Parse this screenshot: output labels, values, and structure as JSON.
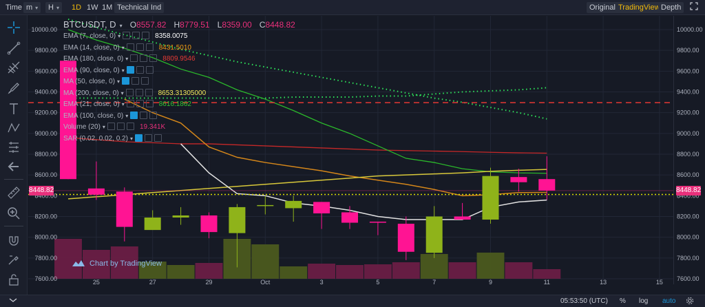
{
  "toolbar": {
    "time_label": "Time",
    "minute_label": "m",
    "hour_label": "H",
    "intervals": [
      "1D",
      "1W",
      "1M"
    ],
    "technical_ind": "Technical Ind",
    "original": "Original",
    "tradingview": "TradingView",
    "depth": "Depth"
  },
  "legend": {
    "symbol": "BTCUSDT, D",
    "o_label": "O",
    "o": "8557.82",
    "h_label": "H",
    "h": "8779.51",
    "l_label": "L",
    "l": "8359.00",
    "c_label": "C",
    "c": "8448.82",
    "indicators": [
      {
        "label": "EMA (7, close, 0)",
        "value": "8358.0075",
        "color": "#ffffff"
      },
      {
        "label": "EMA (14, close, 0)",
        "value": "8431.5010",
        "color": "#f39c12"
      },
      {
        "label": "EMA (180, close, 0)",
        "value": "8809.9546",
        "color": "#e53935"
      },
      {
        "label": "EMA (90, close, 0)",
        "value": "",
        "color": ""
      },
      {
        "label": "MA (50, close, 0)",
        "value": "",
        "color": ""
      },
      {
        "label": "MA (200, close, 0)",
        "value": "8653.31305000",
        "color": "#f2e85a"
      },
      {
        "label": "EMA (21, close, 0)",
        "value": "8616.1862",
        "color": "#30c630"
      },
      {
        "label": "EMA (100, close, 0)",
        "value": "",
        "color": ""
      },
      {
        "label": "Volume (20)",
        "value": "19.341K",
        "color": "#e8307b"
      },
      {
        "label": "SAR (0.02, 0.02, 0.2)",
        "value": "",
        "color": ""
      }
    ]
  },
  "price_tag": "8448.82",
  "watermark": "Chart by TradingView",
  "status": {
    "time": "05:53:50 (UTC)",
    "percent": "%",
    "log": "log",
    "auto": "auto"
  },
  "colors": {
    "up": "#8fb31a",
    "down": "#ff1493",
    "background": "#161a25",
    "accent": "#f0b90b"
  },
  "chart_data": {
    "type": "candlestick",
    "price_axis": {
      "min": 7600,
      "max": 10000,
      "ticks": [
        10000,
        9800,
        9600,
        9400,
        9200,
        9000,
        8800,
        8600,
        8400,
        8200,
        8000,
        7800,
        7600
      ]
    },
    "price_tick_labels": [
      "10000.00",
      "9800.00",
      "9600.00",
      "9400.00",
      "9200.00",
      "9000.00",
      "8800.00",
      "8600.00",
      "8400.00",
      "8200.00",
      "8000.00",
      "7800.00",
      "7600.00"
    ],
    "date_ticks": [
      "25",
      "27",
      "29",
      "Oct",
      "3",
      "5",
      "7",
      "9",
      "11",
      "13",
      "15"
    ],
    "date_tick_index": [
      1,
      3,
      5,
      7,
      9,
      11,
      13,
      15,
      17,
      19,
      21
    ],
    "candles": [
      {
        "o": 9700,
        "h": 9700,
        "l": 8560,
        "c": 8560
      },
      {
        "o": 8470,
        "h": 8730,
        "l": 8360,
        "c": 8410
      },
      {
        "o": 8440,
        "h": 8480,
        "l": 7960,
        "c": 8100
      },
      {
        "o": 8070,
        "h": 8260,
        "l": 8070,
        "c": 8190
      },
      {
        "o": 8190,
        "h": 8290,
        "l": 8120,
        "c": 8210
      },
      {
        "o": 8210,
        "h": 8240,
        "l": 7990,
        "c": 8050
      },
      {
        "o": 8040,
        "h": 8320,
        "l": 7710,
        "c": 8290
      },
      {
        "o": 8300,
        "h": 8400,
        "l": 8220,
        "c": 8310
      },
      {
        "o": 8280,
        "h": 8400,
        "l": 8150,
        "c": 8350
      },
      {
        "o": 8340,
        "h": 8340,
        "l": 8080,
        "c": 8230
      },
      {
        "o": 8240,
        "h": 8300,
        "l": 8080,
        "c": 8140
      },
      {
        "o": 8150,
        "h": 8150,
        "l": 8020,
        "c": 8140
      },
      {
        "o": 8130,
        "h": 8200,
        "l": 7780,
        "c": 7860
      },
      {
        "o": 7850,
        "h": 8300,
        "l": 7800,
        "c": 8200
      },
      {
        "o": 8200,
        "h": 8330,
        "l": 8170,
        "c": 8170
      },
      {
        "o": 8170,
        "h": 8670,
        "l": 8130,
        "c": 8590
      },
      {
        "o": 8580,
        "h": 8660,
        "l": 8440,
        "c": 8530
      },
      {
        "o": 8560,
        "h": 8780,
        "l": 8360,
        "c": 8450
      }
    ],
    "volumes": [
      0.58,
      0.42,
      0.47,
      0.25,
      0.2,
      0.23,
      0.58,
      0.5,
      0.18,
      0.22,
      0.2,
      0.21,
      0.24,
      0.36,
      0.24,
      0.38,
      0.24,
      0.14
    ],
    "ema7": [
      null,
      null,
      null,
      null,
      8900,
      8620,
      8420,
      8400,
      8330,
      8300,
      8260,
      8200,
      8170,
      8170,
      8170,
      8290,
      8340,
      8358
    ],
    "ema14": [
      null,
      null,
      9330,
      9200,
      9100,
      8870,
      8770,
      8720,
      8680,
      8640,
      8590,
      8550,
      8510,
      8460,
      8400,
      8410,
      8430,
      8432
    ],
    "ema21": [
      10000,
      9900,
      9820,
      9730,
      9620,
      9540,
      9420,
      9330,
      9220,
      9100,
      9000,
      8880,
      8760,
      8720,
      8660,
      8630,
      8620,
      8616
    ],
    "ema180": [
      8960,
      8940,
      8920,
      8910,
      8900,
      8900,
      8890,
      8880,
      8870,
      8860,
      8850,
      8840,
      8835,
      8830,
      8825,
      8818,
      8813,
      8810
    ],
    "ma200": [
      8370,
      8390,
      8410,
      8430,
      8450,
      8470,
      8490,
      8510,
      8530,
      8550,
      8570,
      8590,
      8600,
      8610,
      8620,
      8635,
      8645,
      8653
    ],
    "sar_upper": [
      10100,
      10020,
      9950,
      9880,
      9810,
      9750,
      9690,
      9640,
      9590,
      9540,
      9490,
      9440,
      9390,
      9340,
      9300,
      9250,
      9200,
      9140
    ],
    "sar_lower": [
      9340,
      9340,
      9340,
      9340,
      9340,
      9340,
      9340,
      9340,
      9350,
      9350,
      9350,
      9360,
      9360,
      9380,
      9400,
      9410,
      9420,
      9440
    ],
    "last_price": 8448.82,
    "horizontal_lines": [
      {
        "price": 9296,
        "style": "dashed",
        "color": "#e53935"
      },
      {
        "price": 8412,
        "style": "dotted",
        "color": "#e0e000"
      }
    ]
  }
}
